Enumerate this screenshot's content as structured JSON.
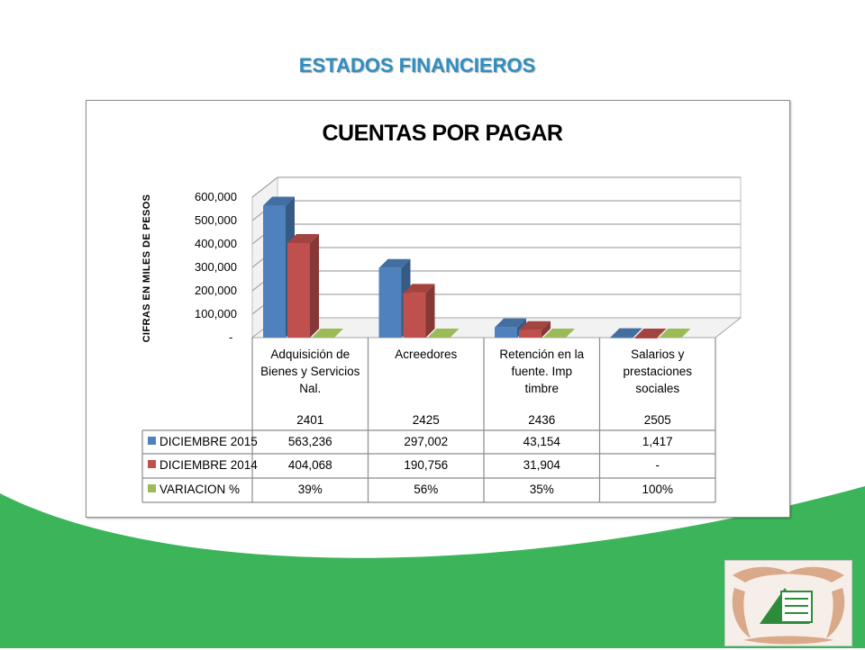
{
  "slide": {
    "heading": "ESTADOS FINANCIEROS"
  },
  "colors": {
    "band": "#3cb55a",
    "heading": "#2f8fc2",
    "series_2015": "#4f81bd",
    "series_2014": "#c0504d",
    "series_var": "#9bbb59"
  },
  "logo": {
    "icon": "hands-house-logo"
  },
  "chart_data": {
    "type": "bar",
    "title": "CUENTAS POR PAGAR",
    "ylabel": "CIFRAS EN MILES DE PESOS",
    "ylim": [
      0,
      600000
    ],
    "yticks": [
      "-",
      "100,000",
      "200,000",
      "300,000",
      "400,000",
      "500,000",
      "600,000"
    ],
    "categories": [
      "Adquisición de Bienes y Servicios Nal.",
      "Acreedores",
      "Retención en la fuente. Imp timbre",
      "Salarios y prestaciones sociales"
    ],
    "category_lines": [
      [
        "Adquisición de",
        "Bienes y Servicios",
        "Nal."
      ],
      [
        "Acreedores"
      ],
      [
        "Retención en la",
        "fuente. Imp",
        "timbre"
      ],
      [
        "Salarios y",
        "prestaciones",
        "sociales"
      ]
    ],
    "codes": [
      "2401",
      "2425",
      "2436",
      "2505"
    ],
    "grid": true,
    "legend": "data-table",
    "series": [
      {
        "name": "DICIEMBRE 2015",
        "values": [
          563236,
          297002,
          43154,
          1417
        ],
        "labels": [
          "563,236",
          "297,002",
          "43,154",
          "1,417"
        ]
      },
      {
        "name": "DICIEMBRE 2014",
        "values": [
          404068,
          190756,
          31904,
          0
        ],
        "labels": [
          "404,068",
          "190,756",
          "31,904",
          "-"
        ]
      },
      {
        "name": "VARIACION %",
        "values": [
          0.39,
          0.56,
          0.35,
          1.0
        ],
        "labels": [
          "39%",
          "56%",
          "35%",
          "100%"
        ]
      }
    ]
  }
}
